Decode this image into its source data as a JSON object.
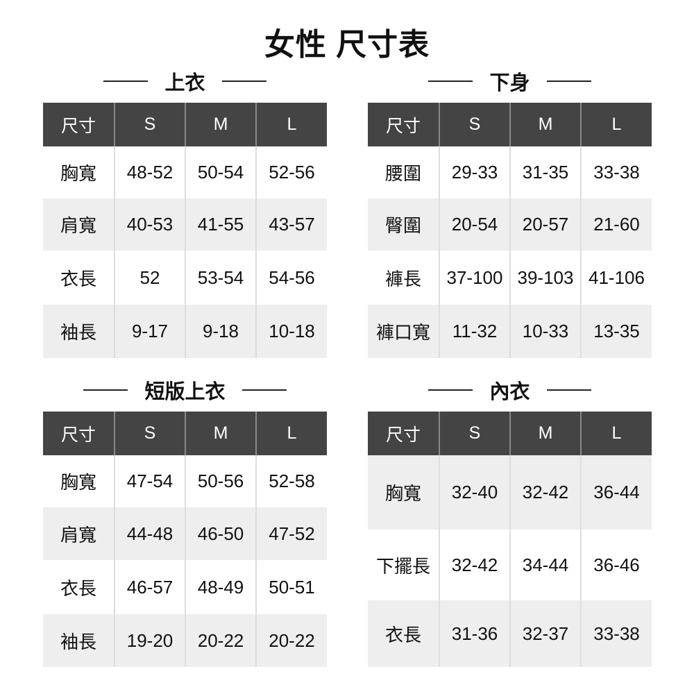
{
  "title": "女性 尺寸表",
  "sections": [
    {
      "name": "上衣",
      "headers": [
        "尺寸",
        "S",
        "M",
        "L"
      ],
      "rows": [
        [
          "胸寬",
          "48-52",
          "50-54",
          "52-56"
        ],
        [
          "肩寬",
          "40-53",
          "41-55",
          "43-57"
        ],
        [
          "衣長",
          "52",
          "53-54",
          "54-56"
        ],
        [
          "袖長",
          "9-17",
          "9-18",
          "10-18"
        ]
      ]
    },
    {
      "name": "下身",
      "headers": [
        "尺寸",
        "S",
        "M",
        "L"
      ],
      "rows": [
        [
          "腰圍",
          "29-33",
          "31-35",
          "33-38"
        ],
        [
          "臀圍",
          "20-54",
          "20-57",
          "21-60"
        ],
        [
          "褲長",
          "37-100",
          "39-103",
          "41-106"
        ],
        [
          "褲口寬",
          "11-32",
          "10-33",
          "13-35"
        ]
      ]
    },
    {
      "name": "短版上衣",
      "headers": [
        "尺寸",
        "S",
        "M",
        "L"
      ],
      "rows": [
        [
          "胸寬",
          "47-54",
          "50-56",
          "52-58"
        ],
        [
          "肩寬",
          "44-48",
          "46-50",
          "47-52"
        ],
        [
          "衣長",
          "46-57",
          "48-49",
          "50-51"
        ],
        [
          "袖長",
          "19-20",
          "20-22",
          "20-22"
        ]
      ]
    },
    {
      "name": "內衣",
      "headers": [
        "尺寸",
        "S",
        "M",
        "L"
      ],
      "rows": [
        [
          "胸寬",
          "32-40",
          "32-42",
          "36-44"
        ],
        [
          "下擺長",
          "32-42",
          "34-44",
          "36-46"
        ],
        [
          "衣長",
          "31-36",
          "32-37",
          "33-38"
        ]
      ]
    }
  ],
  "colors": {
    "header_bg": "#444444",
    "alt_row": "#eeeeee"
  }
}
